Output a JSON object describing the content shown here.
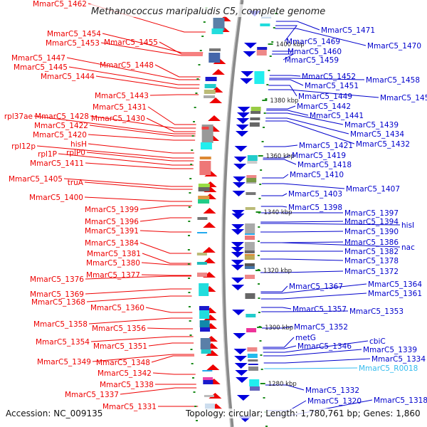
{
  "title": "Methanococcus maripaludis C5, complete genome",
  "accession_label": "Accession: NC_009135",
  "summary_label": "Topology: circular; Length: 1,780,761 bp; Genes: 1,860",
  "colors": {
    "forward_strand": "#ee0000",
    "reverse_strand": "#0000cc",
    "rna_label": "#33bbee",
    "backbone": "#888888",
    "tick": "#1a8a1a"
  },
  "kbp_ticks": [
    "1400 kbp",
    "1380 kbp",
    "1360 kbp",
    "1340 kbp",
    "1320 kbp",
    "1300 kbp",
    "1280 kbp"
  ],
  "left_labels": [
    "MmarC5_1462",
    "MmarC5_1454",
    "MmarC5_1453",
    "MmarC5_1455",
    "MmarC5_1447",
    "MmarC5_1448",
    "MmarC5_1445",
    "MmarC5_1444",
    "MmarC5_1443",
    "MmarC5_1431",
    "rpl37ae",
    "MmarC5_1428",
    "MmarC5_1430",
    "MmarC5_1422",
    "MmarC5_1420",
    "hisH",
    "rpl12p",
    "rpl1P",
    "rplP0",
    "MmarC5_1411",
    "MmarC5_1405",
    "truA",
    "MmarC5_1400",
    "MmarC5_1399",
    "MmarC5_1396",
    "MmarC5_1391",
    "MmarC5_1384",
    "MmarC5_1381",
    "MmarC5_1380",
    "MmarC5_1377",
    "MmarC5_1376",
    "MmarC5_1369",
    "MmarC5_1368",
    "MmarC5_1360",
    "MmarC5_1358",
    "MmarC5_1356",
    "MmarC5_1354",
    "MmarC5_1351",
    "MmarC5_1349",
    "MmarC5_1348",
    "MmarC5_1342",
    "MmarC5_1338",
    "MmarC5_1337",
    "MmarC5_1331"
  ],
  "right_labels": [
    "MmarC5_1471",
    "MmarC5_1469",
    "MmarC5_1470",
    "MmarC5_1460",
    "MmarC5_1459",
    "MmarC5_1452",
    "MmarC5_1458",
    "MmarC5_1451",
    "MmarC5_1449",
    "MmarC5_1450",
    "MmarC5_1442",
    "MmarC5_1441",
    "MmarC5_1439",
    "MmarC5_1434",
    "MmarC5_1421",
    "MmarC5_1432",
    "MmarC5_1419",
    "MmarC5_1418",
    "MmarC5_1410",
    "MmarC5_1407",
    "MmarC5_1403",
    "MmarC5_1398",
    "MmarC5_1397",
    "MmarC5_1394",
    "hisI",
    "MmarC5_1390",
    "MmarC5_1386",
    "nac",
    "MmarC5_1382",
    "MmarC5_1378",
    "MmarC5_1372",
    "MmarC5_1367",
    "MmarC5_1364",
    "MmarC5_1361",
    "MmarC5_1357",
    "MmarC5_1353",
    "MmarC5_1352",
    "metG",
    "cbiC",
    "MmarC5_1346",
    "MmarC5_1339",
    "MmarC5_1334",
    "MmarC5_R0018",
    "MmarC5_1332",
    "MmarC5_1320",
    "MmarC5_1318"
  ]
}
